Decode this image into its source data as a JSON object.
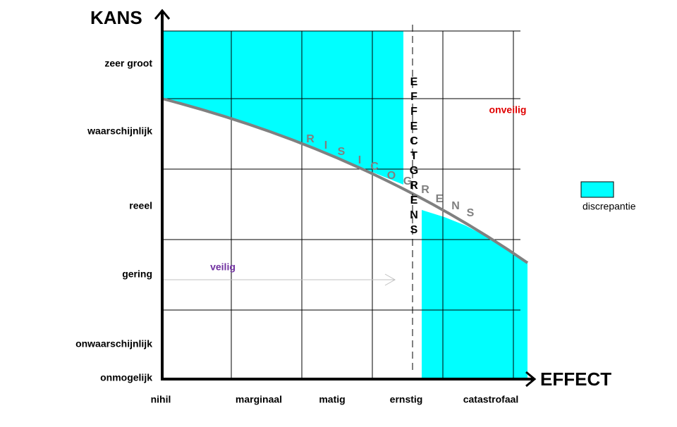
{
  "axes": {
    "y_title": "KANS",
    "x_title": "EFFECT",
    "y_labels": [
      "zeer groot",
      "waarschijnlijk",
      "reeel",
      "gering",
      "onwaarschijnlijk",
      "onmogelijk"
    ],
    "x_labels": [
      "nihil",
      "marginaal",
      "matig",
      "ernstig",
      "catastrofaal"
    ]
  },
  "labels": {
    "effect_boundary": [
      "E",
      "F",
      "F",
      "E",
      "C",
      "T",
      "G",
      "R",
      "E",
      "N",
      "S"
    ],
    "risk_boundary": [
      "R",
      "I",
      "S",
      "I",
      "C",
      "O",
      "G",
      "R",
      "E",
      "N",
      "S"
    ],
    "unsafe": "onveilig",
    "safe": "veilig"
  },
  "legend": {
    "label": "discrepantie"
  }
}
